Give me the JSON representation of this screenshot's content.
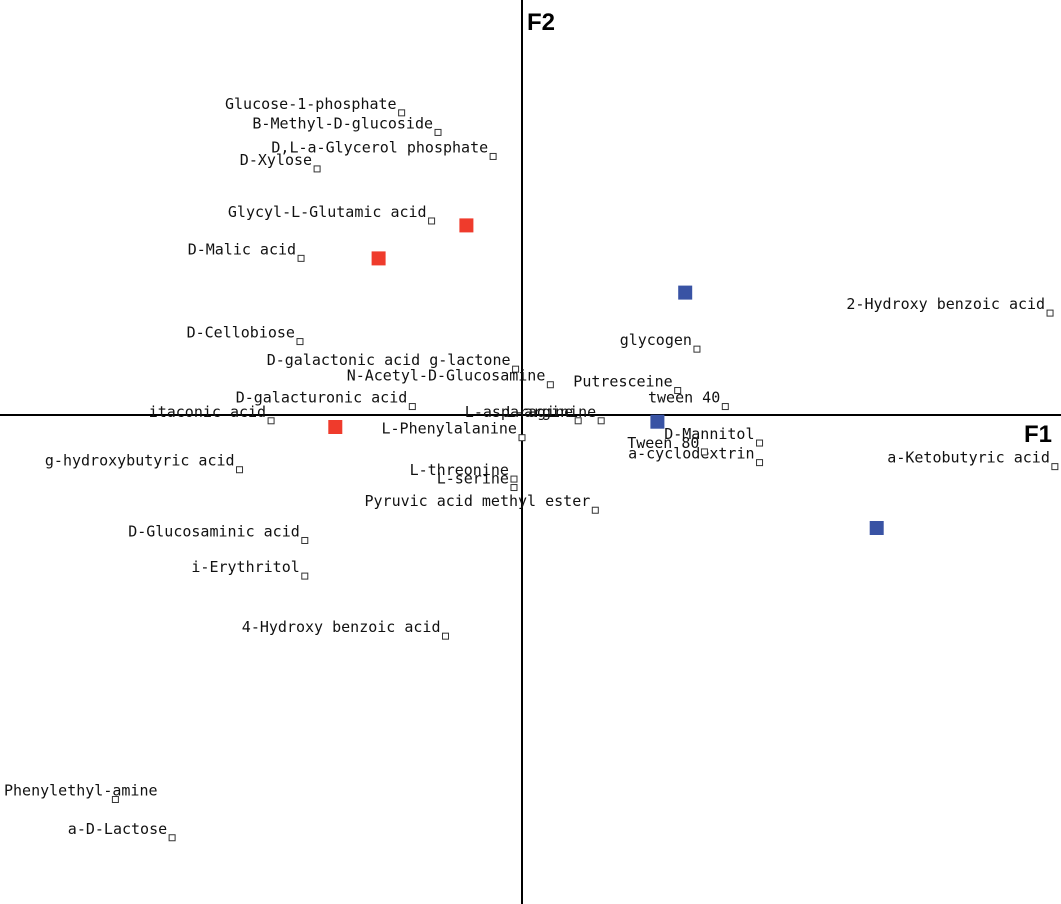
{
  "chart_data": {
    "type": "scatter",
    "title": "",
    "xlabel": "F1",
    "ylabel": "F2",
    "grid": false,
    "legend": "none",
    "xlim": [
      -1.0,
      1.0
    ],
    "ylim": [
      -1.0,
      1.0
    ],
    "colors": {
      "axis": "#000000",
      "variable_marker": "#333333",
      "group_red": "#ef3b2c",
      "group_blue": "#3953a4"
    },
    "variables": [
      {
        "label": "Glucose-1-phosphate",
        "x": -0.225,
        "y": 0.679
      },
      {
        "label": "B-Methyl-D-glucoside",
        "x": -0.157,
        "y": 0.635
      },
      {
        "label": "D,L-a-Glycerol  phosphate",
        "x": -0.054,
        "y": 0.581
      },
      {
        "label": "D-Xylose",
        "x": -0.383,
        "y": 0.553
      },
      {
        "label": "Glycyl-L-Glutamic  acid",
        "x": -0.169,
        "y": 0.436
      },
      {
        "label": "D-Malic  acid",
        "x": -0.413,
        "y": 0.352
      },
      {
        "label": "D-Cellobiose",
        "x": -0.415,
        "y": 0.165
      },
      {
        "label": "D-galactonic  acid  g-lactone",
        "x": -0.012,
        "y": 0.103
      },
      {
        "label": "N-Acetyl-D-Glucosamine",
        "x": 0.053,
        "y": 0.068
      },
      {
        "label": "Putresceine",
        "x": 0.291,
        "y": 0.055
      },
      {
        "label": "tween  40",
        "x": 0.38,
        "y": 0.019
      },
      {
        "label": "D-galacturonic  acid",
        "x": -0.205,
        "y": 0.019
      },
      {
        "label": "itaconic  acid",
        "x": -0.469,
        "y": -0.013
      },
      {
        "label": "L-asparagine",
        "x": 0.105,
        "y": -0.013
      },
      {
        "label": "L-arginine",
        "x": 0.148,
        "y": -0.013
      },
      {
        "label": "glycogen",
        "x": 0.327,
        "y": 0.148
      },
      {
        "label": "2-Hydroxy  benzoic  acid",
        "x": 0.987,
        "y": 0.229
      },
      {
        "label": "L-Phenylalanine",
        "x": 0.0,
        "y": -0.051
      },
      {
        "label": "D-Mannitol",
        "x": 0.444,
        "y": -0.063
      },
      {
        "label": "a-cyclodextrin",
        "x": 0.444,
        "y": -0.107
      },
      {
        "label": "Tween  80",
        "x": 0.341,
        "y": -0.083
      },
      {
        "label": "a-Ketobutyric  acid",
        "x": 0.996,
        "y": -0.116
      },
      {
        "label": "g-hydroxybutyric acid",
        "x": -0.528,
        "y": -0.123
      },
      {
        "label": "L-threonine",
        "x": -0.015,
        "y": -0.144
      },
      {
        "label": "L-serine",
        "x": -0.015,
        "y": -0.163
      },
      {
        "label": "Pyruvic  acid  methyl  ester",
        "x": 0.137,
        "y": -0.214
      },
      {
        "label": "D-Glucosaminic  acid",
        "x": -0.406,
        "y": -0.282
      },
      {
        "label": "i-Erythritol",
        "x": -0.406,
        "y": -0.362
      },
      {
        "label": "4-Hydroxy  benzoic  acid",
        "x": -0.143,
        "y": -0.497
      },
      {
        "label": "Phenylethyl-amine",
        "x": -0.76,
        "y": -0.864
      },
      {
        "label": "a-D-Lactose",
        "x": -0.654,
        "y": -0.95
      }
    ],
    "groups": [
      {
        "color": "red",
        "points": [
          [
            -0.104,
            0.426
          ],
          [
            -0.268,
            0.352
          ],
          [
            -0.349,
            -0.027
          ]
        ]
      },
      {
        "color": "blue",
        "points": [
          [
            0.305,
            0.275
          ],
          [
            0.253,
            -0.015
          ],
          [
            0.663,
            -0.254
          ]
        ]
      }
    ]
  }
}
